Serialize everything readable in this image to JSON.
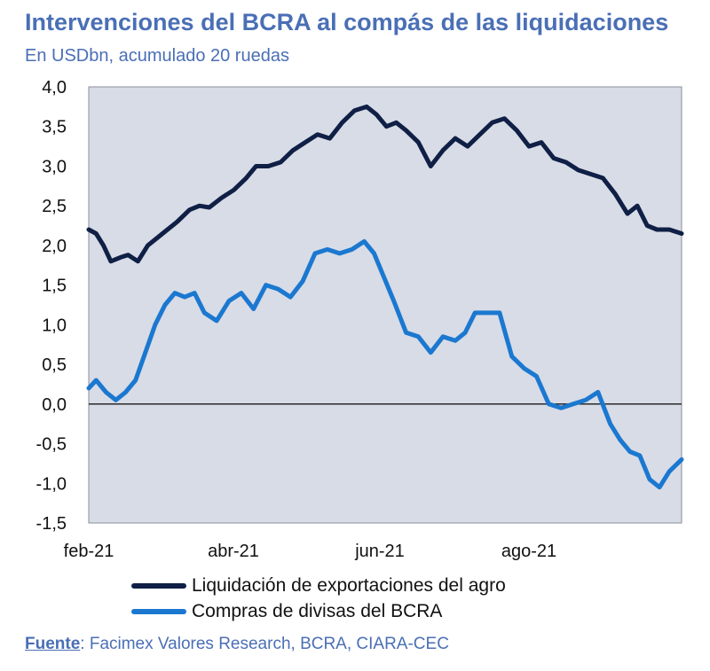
{
  "colors": {
    "title": "#4a6fb5",
    "subtitle": "#4a6fb5",
    "plot_bg": "#d8dce6",
    "series_agro": "#0f1f45",
    "series_bcra": "#1b78d0",
    "axis_text": "#111111",
    "source_text": "#4a6fb5"
  },
  "source": {
    "label": "Fuente",
    "text": ": Facimex Valores Research, BCRA, CIARA-CEC"
  },
  "chart_data": {
    "type": "line",
    "title": "Intervenciones del BCRA al compás de las liquidaciones",
    "subtitle": "En USDbn, acumulado 20 ruedas",
    "xlabel": "",
    "ylabel": "",
    "x_ticks": [
      "feb-21",
      "abr-21",
      "jun-21",
      "ago-21"
    ],
    "x_range": [
      "2021-02-01",
      "2021-09-30"
    ],
    "ylim": [
      -1.5,
      4.0
    ],
    "y_ticks": [
      -1.5,
      -1.0,
      -0.5,
      0.0,
      0.5,
      1.0,
      1.5,
      2.0,
      2.5,
      3.0,
      3.5,
      4.0
    ],
    "y_tick_labels": [
      "-1,5",
      "-1,0",
      "-0,5",
      "0,0",
      "0,5",
      "1,0",
      "1,5",
      "2,0",
      "2,5",
      "3,0",
      "3,5",
      "4,0"
    ],
    "zero_line": true,
    "grid": false,
    "legend_position": "bottom",
    "series": [
      {
        "name": "Liquidación de exportaciones del agro",
        "color": "#0f1f45",
        "x": [
          "2021-02-01",
          "2021-02-04",
          "2021-02-07",
          "2021-02-10",
          "2021-02-14",
          "2021-02-17",
          "2021-02-21",
          "2021-02-25",
          "2021-03-01",
          "2021-03-05",
          "2021-03-09",
          "2021-03-14",
          "2021-03-18",
          "2021-03-22",
          "2021-03-27",
          "2021-04-01",
          "2021-04-06",
          "2021-04-10",
          "2021-04-15",
          "2021-04-20",
          "2021-04-25",
          "2021-04-30",
          "2021-05-05",
          "2021-05-10",
          "2021-05-15",
          "2021-05-20",
          "2021-05-25",
          "2021-05-29",
          "2021-06-02",
          "2021-06-06",
          "2021-06-10",
          "2021-06-15",
          "2021-06-20",
          "2021-06-25",
          "2021-06-30",
          "2021-07-05",
          "2021-07-10",
          "2021-07-15",
          "2021-07-20",
          "2021-07-25",
          "2021-07-30",
          "2021-08-04",
          "2021-08-09",
          "2021-08-14",
          "2021-08-19",
          "2021-08-24",
          "2021-08-29",
          "2021-09-03",
          "2021-09-08",
          "2021-09-12",
          "2021-09-16",
          "2021-09-20",
          "2021-09-25",
          "2021-09-30"
        ],
        "values": [
          2.2,
          2.15,
          2.0,
          1.8,
          1.85,
          1.88,
          1.8,
          2.0,
          2.1,
          2.2,
          2.3,
          2.45,
          2.5,
          2.48,
          2.6,
          2.7,
          2.85,
          3.0,
          3.0,
          3.05,
          3.2,
          3.3,
          3.4,
          3.35,
          3.55,
          3.7,
          3.75,
          3.65,
          3.5,
          3.55,
          3.45,
          3.3,
          3.0,
          3.2,
          3.35,
          3.25,
          3.4,
          3.55,
          3.6,
          3.45,
          3.25,
          3.3,
          3.1,
          3.05,
          2.95,
          2.9,
          2.85,
          2.65,
          2.4,
          2.5,
          2.25,
          2.2,
          2.2,
          2.15
        ]
      },
      {
        "name": "Compras de divisas del BCRA",
        "color": "#1b78d0",
        "x": [
          "2021-02-01",
          "2021-02-04",
          "2021-02-08",
          "2021-02-12",
          "2021-02-16",
          "2021-02-20",
          "2021-02-24",
          "2021-02-28",
          "2021-03-04",
          "2021-03-08",
          "2021-03-12",
          "2021-03-16",
          "2021-03-20",
          "2021-03-25",
          "2021-03-30",
          "2021-04-04",
          "2021-04-09",
          "2021-04-14",
          "2021-04-19",
          "2021-04-24",
          "2021-04-29",
          "2021-05-04",
          "2021-05-09",
          "2021-05-14",
          "2021-05-19",
          "2021-05-24",
          "2021-05-28",
          "2021-06-01",
          "2021-06-05",
          "2021-06-10",
          "2021-06-15",
          "2021-06-20",
          "2021-06-25",
          "2021-06-30",
          "2021-07-04",
          "2021-07-08",
          "2021-07-13",
          "2021-07-18",
          "2021-07-23",
          "2021-07-28",
          "2021-08-02",
          "2021-08-07",
          "2021-08-12",
          "2021-08-17",
          "2021-08-22",
          "2021-08-27",
          "2021-09-01",
          "2021-09-05",
          "2021-09-09",
          "2021-09-13",
          "2021-09-17",
          "2021-09-21",
          "2021-09-25",
          "2021-09-30"
        ],
        "values": [
          0.2,
          0.3,
          0.15,
          0.05,
          0.15,
          0.3,
          0.65,
          1.0,
          1.25,
          1.4,
          1.35,
          1.4,
          1.15,
          1.05,
          1.3,
          1.4,
          1.2,
          1.5,
          1.45,
          1.35,
          1.55,
          1.9,
          1.95,
          1.9,
          1.95,
          2.05,
          1.9,
          1.6,
          1.3,
          0.9,
          0.85,
          0.65,
          0.85,
          0.8,
          0.9,
          1.15,
          1.15,
          1.15,
          0.6,
          0.45,
          0.35,
          0.0,
          -0.05,
          0.0,
          0.05,
          0.15,
          -0.25,
          -0.45,
          -0.6,
          -0.65,
          -0.95,
          -1.05,
          -0.85,
          -0.7
        ]
      }
    ]
  }
}
